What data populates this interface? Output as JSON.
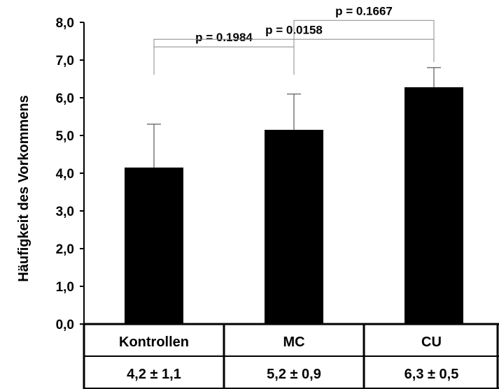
{
  "chart_data": {
    "type": "bar",
    "title": "",
    "ylabel": "Häufigkeit des Vorkommens",
    "xlabel": "",
    "ylim": [
      0,
      8
    ],
    "yticks": [
      0,
      1,
      2,
      3,
      4,
      5,
      6,
      7,
      8
    ],
    "ytick_labels": [
      "0,0",
      "1,0",
      "2,0",
      "3,0",
      "4,0",
      "5,0",
      "6,0",
      "7,0",
      "8,0"
    ],
    "categories": [
      "Kontrollen",
      "MC",
      "CU"
    ],
    "values": [
      4.15,
      5.15,
      6.28
    ],
    "errors": [
      1.15,
      0.95,
      0.52
    ],
    "bar_color": "#000000",
    "grid": false,
    "table_values": [
      "4,2 ± 1,1",
      "5,2 ± 0,9",
      "6,3 ± 0,5"
    ],
    "comparisons": [
      {
        "from": 0,
        "to": 1,
        "label": "p = 0.1984",
        "level": 7.35
      },
      {
        "from": 0,
        "to": 2,
        "label": "p = 0.0158",
        "level": 7.55
      },
      {
        "from": 1,
        "to": 2,
        "label": "p = 0.1667",
        "level": 8.05
      }
    ]
  }
}
